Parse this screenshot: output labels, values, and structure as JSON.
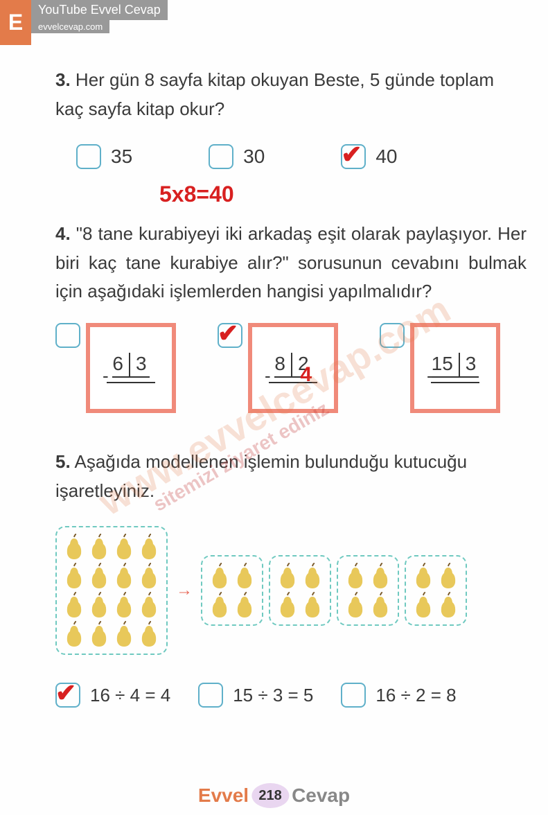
{
  "header": {
    "logo_letter": "E",
    "youtube_label": "YouTube Evvel Cevap",
    "site_label": "evvelcevap.com"
  },
  "q3": {
    "number": "3.",
    "text": "Her gün 8 sayfa kitap okuyan Beste, 5 günde toplam kaç sayfa kitap okur?",
    "options": [
      {
        "label": "35",
        "checked": false
      },
      {
        "label": "30",
        "checked": false
      },
      {
        "label": "40",
        "checked": true
      }
    ],
    "annotation": "5x8=40",
    "annotation_color": "#d82020"
  },
  "q4": {
    "number": "4.",
    "text": "\"8 tane kurabiyeyi iki arkadaş eşit olarak paylaşıyor. Her biri kaç tane kurabiye alır?\" sorusunun cevabını bulmak için aşağıdaki işlemlerden hangisi yapılmalıdır?",
    "cards": [
      {
        "dividend": "6",
        "divisor": "3",
        "checked": false,
        "answer": ""
      },
      {
        "dividend": "8",
        "divisor": "2",
        "checked": true,
        "answer": "4"
      },
      {
        "dividend": "15",
        "divisor": "3",
        "checked": false,
        "answer": ""
      }
    ],
    "card_border_color": "#f08a7a",
    "answer_color": "#d82020"
  },
  "q5": {
    "number": "5.",
    "text": "Aşağıda modellenen işlemin bulunduğu kutucuğu işaretleyiniz.",
    "big_pears": 16,
    "big_cols": 4,
    "groups": 4,
    "group_pears": 4,
    "group_cols": 2,
    "arrow_color": "#e86a5a",
    "pear_color": "#e8c85a",
    "box_border_color": "#6fc9c0",
    "options": [
      {
        "label": "16 ÷ 4 = 4",
        "checked": true
      },
      {
        "label": "15 ÷ 3 = 5",
        "checked": false
      },
      {
        "label": "16 ÷ 2 = 8",
        "checked": false
      }
    ]
  },
  "colors": {
    "check_color": "#d82020",
    "checkbox_border": "#5fb0c9"
  },
  "watermark": {
    "main": "www.evvelcevap.com",
    "sub": "sitemizi ziyaret ediniz",
    "color_main": "#e37b4a",
    "color_sub": "#c03030"
  },
  "footer": {
    "brand1": "Evvel",
    "page": "218",
    "brand2": "Cevap"
  }
}
